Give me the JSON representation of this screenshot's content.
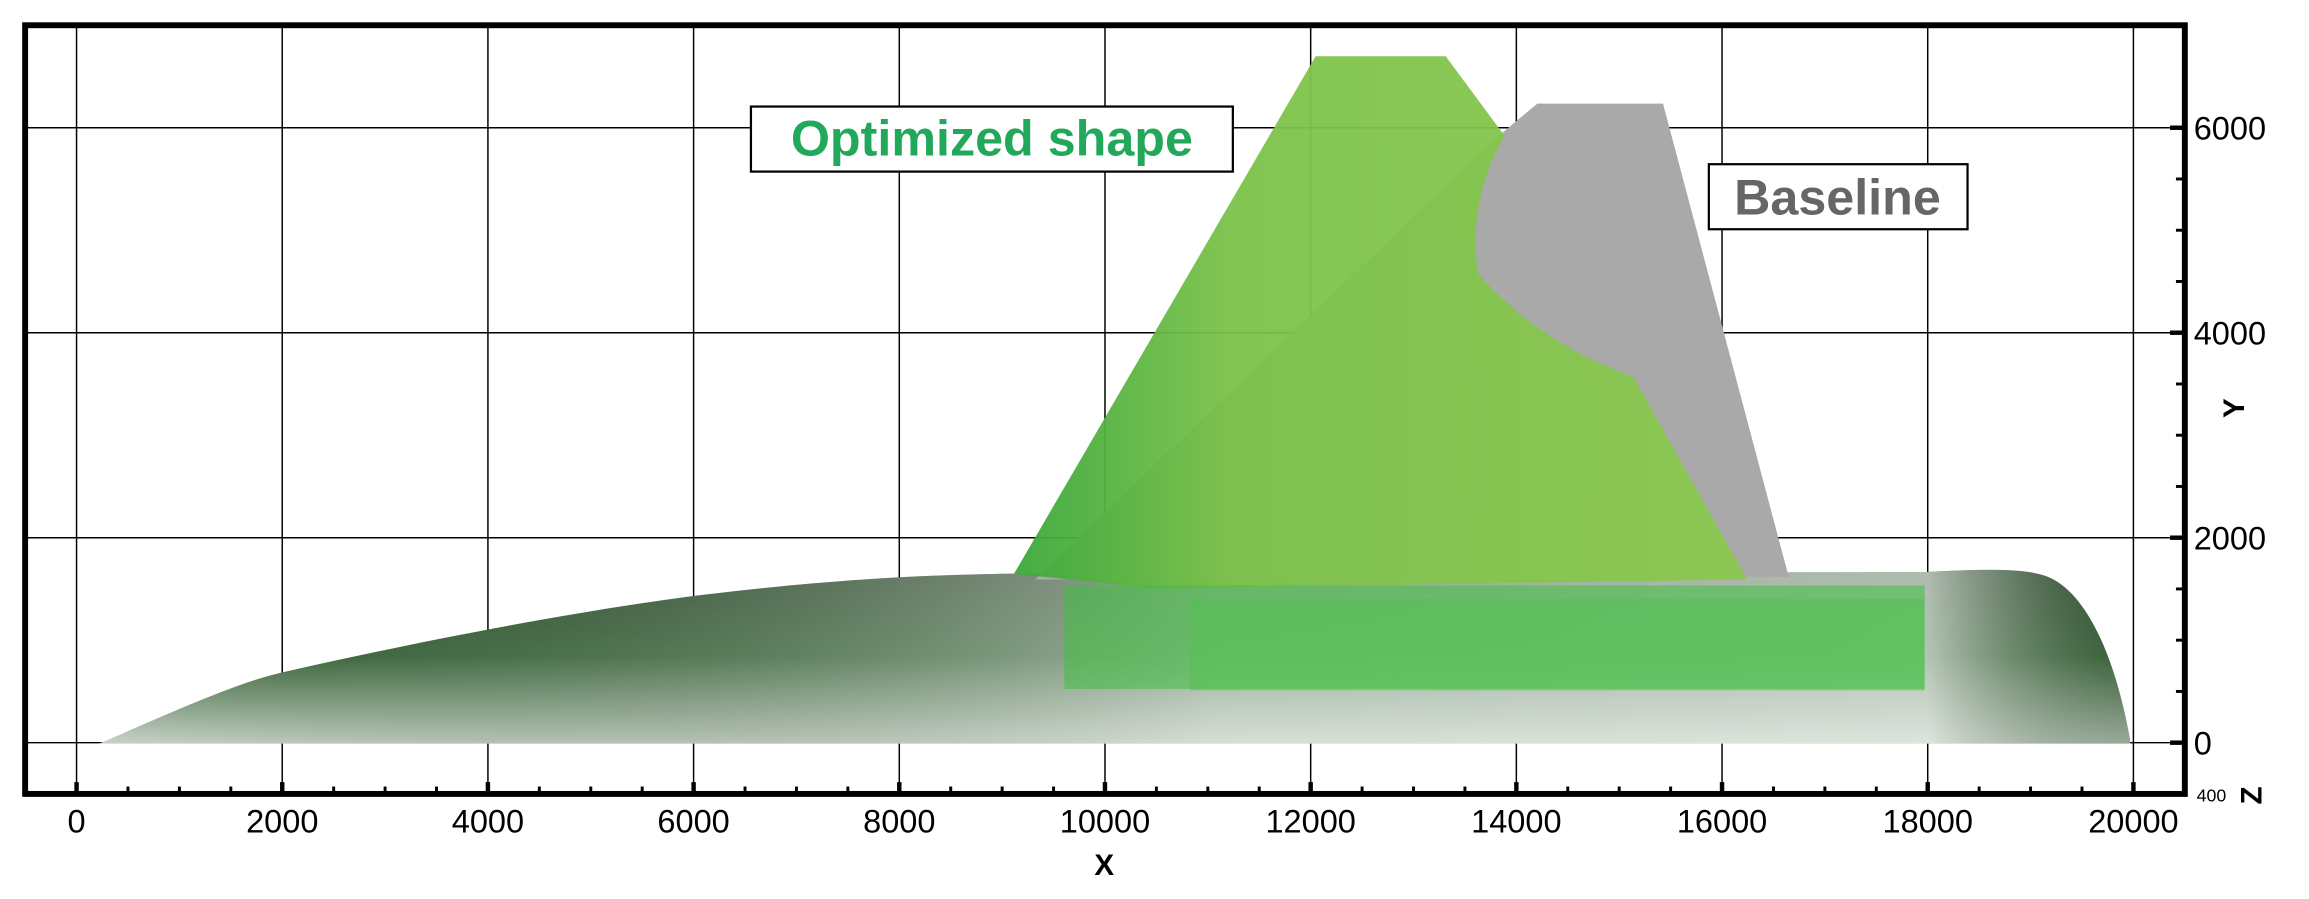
{
  "chart_data": {
    "type": "surface",
    "x_label": "X",
    "y_label": "Y",
    "z_label": "Z",
    "z_tick": "400",
    "annotations": [
      "Optimized shape",
      "Baseline"
    ],
    "xlim": [
      -500,
      20500
    ],
    "ylim": [
      -500,
      7000
    ],
    "xticks": [
      0,
      2000,
      4000,
      6000,
      8000,
      10000,
      12000,
      14000,
      16000,
      18000,
      20000
    ],
    "yticks": [
      0,
      2000,
      4000,
      6000
    ],
    "grid": true
  }
}
